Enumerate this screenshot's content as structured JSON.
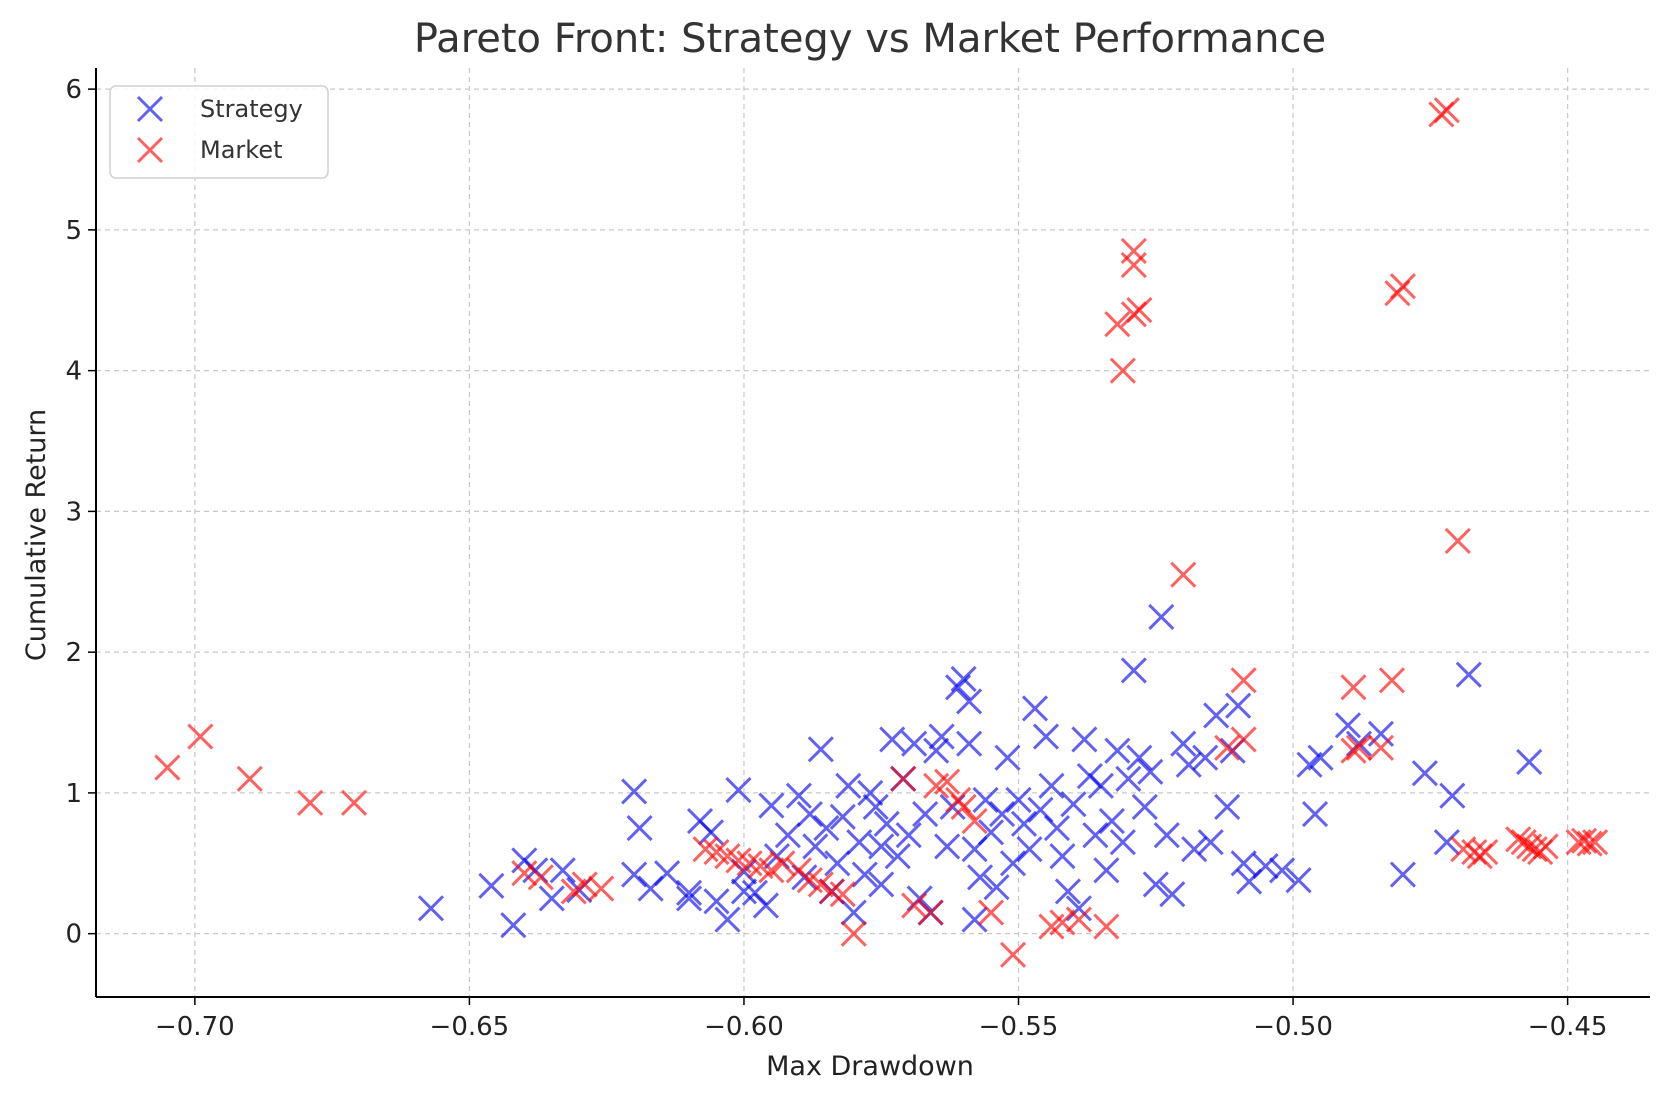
{
  "chart_data": {
    "type": "scatter",
    "title": "Pareto Front: Strategy vs Market Performance",
    "xlabel": "Max Drawdown",
    "ylabel": "Cumulative Return",
    "xlim": [
      -0.718,
      -0.435
    ],
    "ylim": [
      -0.45,
      6.15
    ],
    "xticks": [
      -0.7,
      -0.65,
      -0.6,
      -0.55,
      -0.5,
      -0.45
    ],
    "xtick_labels": [
      "−0.70",
      "−0.65",
      "−0.60",
      "−0.55",
      "−0.50",
      "−0.45"
    ],
    "yticks": [
      0,
      1,
      2,
      3,
      4,
      5,
      6
    ],
    "ytick_labels": [
      "0",
      "1",
      "2",
      "3",
      "4",
      "5",
      "6"
    ],
    "grid": true,
    "legend_position": "top-left",
    "marker": "x",
    "series": [
      {
        "name": "Strategy",
        "color": "#0000ee",
        "points": [
          [
            -0.657,
            0.18
          ],
          [
            -0.646,
            0.34
          ],
          [
            -0.642,
            0.06
          ],
          [
            -0.64,
            0.52
          ],
          [
            -0.638,
            0.45
          ],
          [
            -0.635,
            0.25
          ],
          [
            -0.633,
            0.45
          ],
          [
            -0.63,
            0.31
          ],
          [
            -0.62,
            1.01
          ],
          [
            -0.619,
            0.75
          ],
          [
            -0.62,
            0.42
          ],
          [
            -0.617,
            0.32
          ],
          [
            -0.614,
            0.43
          ],
          [
            -0.61,
            0.29
          ],
          [
            -0.608,
            0.8
          ],
          [
            -0.606,
            0.72
          ],
          [
            -0.605,
            0.23
          ],
          [
            -0.603,
            0.1
          ],
          [
            -0.601,
            1.02
          ],
          [
            -0.6,
            0.44
          ],
          [
            -0.598,
            0.29
          ],
          [
            -0.596,
            0.2
          ],
          [
            -0.595,
            0.91
          ],
          [
            -0.594,
            0.55
          ],
          [
            -0.592,
            0.7
          ],
          [
            -0.59,
            0.98
          ],
          [
            -0.589,
            0.4
          ],
          [
            -0.588,
            0.85
          ],
          [
            -0.587,
            0.62
          ],
          [
            -0.586,
            1.31
          ],
          [
            -0.585,
            0.75
          ],
          [
            -0.584,
            0.3
          ],
          [
            -0.583,
            0.5
          ],
          [
            -0.582,
            0.83
          ],
          [
            -0.581,
            1.05
          ],
          [
            -0.58,
            0.15
          ],
          [
            -0.579,
            0.65
          ],
          [
            -0.578,
            0.42
          ],
          [
            -0.577,
            1.0
          ],
          [
            -0.576,
            0.9
          ],
          [
            -0.575,
            0.35
          ],
          [
            -0.574,
            0.78
          ],
          [
            -0.573,
            1.38
          ],
          [
            -0.572,
            0.55
          ],
          [
            -0.571,
            1.1
          ],
          [
            -0.57,
            0.7
          ],
          [
            -0.569,
            1.35
          ],
          [
            -0.568,
            0.25
          ],
          [
            -0.567,
            0.85
          ],
          [
            -0.566,
            0.15
          ],
          [
            -0.565,
            1.3
          ],
          [
            -0.564,
            1.4
          ],
          [
            -0.563,
            0.62
          ],
          [
            -0.562,
            0.9
          ],
          [
            -0.561,
            1.75
          ],
          [
            -0.56,
            1.81
          ],
          [
            -0.559,
            1.65
          ],
          [
            -0.559,
            1.35
          ],
          [
            -0.558,
            0.6
          ],
          [
            -0.557,
            0.4
          ],
          [
            -0.556,
            0.95
          ],
          [
            -0.555,
            0.72
          ],
          [
            -0.554,
            0.33
          ],
          [
            -0.553,
            0.85
          ],
          [
            -0.552,
            1.25
          ],
          [
            -0.551,
            0.5
          ],
          [
            -0.55,
            0.95
          ],
          [
            -0.549,
            0.78
          ],
          [
            -0.548,
            0.6
          ],
          [
            -0.547,
            1.6
          ],
          [
            -0.546,
            0.88
          ],
          [
            -0.545,
            1.4
          ],
          [
            -0.544,
            1.05
          ],
          [
            -0.543,
            0.75
          ],
          [
            -0.542,
            0.55
          ],
          [
            -0.541,
            0.3
          ],
          [
            -0.54,
            0.92
          ],
          [
            -0.539,
            0.18
          ],
          [
            -0.538,
            1.38
          ],
          [
            -0.537,
            1.12
          ],
          [
            -0.536,
            0.7
          ],
          [
            -0.535,
            1.05
          ],
          [
            -0.534,
            0.45
          ],
          [
            -0.533,
            0.8
          ],
          [
            -0.532,
            1.3
          ],
          [
            -0.531,
            0.65
          ],
          [
            -0.53,
            1.1
          ],
          [
            -0.529,
            1.87
          ],
          [
            -0.528,
            1.25
          ],
          [
            -0.527,
            0.9
          ],
          [
            -0.526,
            1.15
          ],
          [
            -0.525,
            0.35
          ],
          [
            -0.524,
            2.25
          ],
          [
            -0.523,
            0.7
          ],
          [
            -0.522,
            0.28
          ],
          [
            -0.52,
            1.35
          ],
          [
            -0.519,
            1.2
          ],
          [
            -0.518,
            0.6
          ],
          [
            -0.516,
            1.25
          ],
          [
            -0.515,
            0.65
          ],
          [
            -0.514,
            1.55
          ],
          [
            -0.512,
            0.9
          ],
          [
            -0.511,
            1.3
          ],
          [
            -0.51,
            1.62
          ],
          [
            -0.509,
            0.5
          ],
          [
            -0.508,
            0.37
          ],
          [
            -0.505,
            0.48
          ],
          [
            -0.502,
            0.45
          ],
          [
            -0.499,
            0.38
          ],
          [
            -0.497,
            1.2
          ],
          [
            -0.496,
            0.85
          ],
          [
            -0.495,
            1.25
          ],
          [
            -0.49,
            1.48
          ],
          [
            -0.488,
            1.35
          ],
          [
            -0.484,
            1.42
          ],
          [
            -0.48,
            0.42
          ],
          [
            -0.476,
            1.14
          ],
          [
            -0.472,
            0.65
          ],
          [
            -0.471,
            0.98
          ],
          [
            -0.468,
            1.84
          ],
          [
            -0.457,
            1.22
          ],
          [
            -0.558,
            0.1
          ],
          [
            -0.6,
            0.3
          ],
          [
            -0.61,
            0.25
          ],
          [
            -0.575,
            0.62
          ]
        ]
      },
      {
        "name": "Market",
        "color": "#ff0000",
        "points": [
          [
            -0.705,
            1.18
          ],
          [
            -0.699,
            1.4
          ],
          [
            -0.69,
            1.1
          ],
          [
            -0.679,
            0.93
          ],
          [
            -0.671,
            0.93
          ],
          [
            -0.64,
            0.43
          ],
          [
            -0.637,
            0.4
          ],
          [
            -0.631,
            0.3
          ],
          [
            -0.629,
            0.35
          ],
          [
            -0.626,
            0.32
          ],
          [
            -0.607,
            0.6
          ],
          [
            -0.605,
            0.58
          ],
          [
            -0.603,
            0.55
          ],
          [
            -0.601,
            0.52
          ],
          [
            -0.599,
            0.5
          ],
          [
            -0.597,
            0.48
          ],
          [
            -0.595,
            0.45
          ],
          [
            -0.593,
            0.5
          ],
          [
            -0.59,
            0.45
          ],
          [
            -0.588,
            0.38
          ],
          [
            -0.586,
            0.35
          ],
          [
            -0.584,
            0.3
          ],
          [
            -0.582,
            0.28
          ],
          [
            -0.58,
            0.0
          ],
          [
            -0.571,
            1.1
          ],
          [
            -0.569,
            0.2
          ],
          [
            -0.566,
            0.15
          ],
          [
            -0.565,
            1.05
          ],
          [
            -0.563,
            1.08
          ],
          [
            -0.561,
            0.95
          ],
          [
            -0.56,
            0.9
          ],
          [
            -0.558,
            0.8
          ],
          [
            -0.555,
            0.15
          ],
          [
            -0.551,
            -0.15
          ],
          [
            -0.544,
            0.05
          ],
          [
            -0.542,
            0.08
          ],
          [
            -0.539,
            0.1
          ],
          [
            -0.534,
            0.05
          ],
          [
            -0.532,
            4.33
          ],
          [
            -0.531,
            4.0
          ],
          [
            -0.529,
            4.85
          ],
          [
            -0.529,
            4.75
          ],
          [
            -0.529,
            4.4
          ],
          [
            -0.528,
            4.43
          ],
          [
            -0.52,
            2.55
          ],
          [
            -0.512,
            1.32
          ],
          [
            -0.509,
            1.38
          ],
          [
            -0.509,
            1.8
          ],
          [
            -0.489,
            1.75
          ],
          [
            -0.489,
            1.3
          ],
          [
            -0.488,
            1.32
          ],
          [
            -0.484,
            1.32
          ],
          [
            -0.482,
            1.8
          ],
          [
            -0.481,
            4.55
          ],
          [
            -0.48,
            4.6
          ],
          [
            -0.473,
            5.82
          ],
          [
            -0.472,
            5.85
          ],
          [
            -0.47,
            2.79
          ],
          [
            -0.469,
            0.6
          ],
          [
            -0.467,
            0.58
          ],
          [
            -0.466,
            0.55
          ],
          [
            -0.465,
            0.58
          ],
          [
            -0.459,
            0.67
          ],
          [
            -0.458,
            0.65
          ],
          [
            -0.457,
            0.62
          ],
          [
            -0.456,
            0.6
          ],
          [
            -0.455,
            0.58
          ],
          [
            -0.454,
            0.62
          ],
          [
            -0.448,
            0.65
          ],
          [
            -0.447,
            0.66
          ],
          [
            -0.446,
            0.64
          ],
          [
            -0.445,
            0.65
          ]
        ]
      }
    ]
  }
}
